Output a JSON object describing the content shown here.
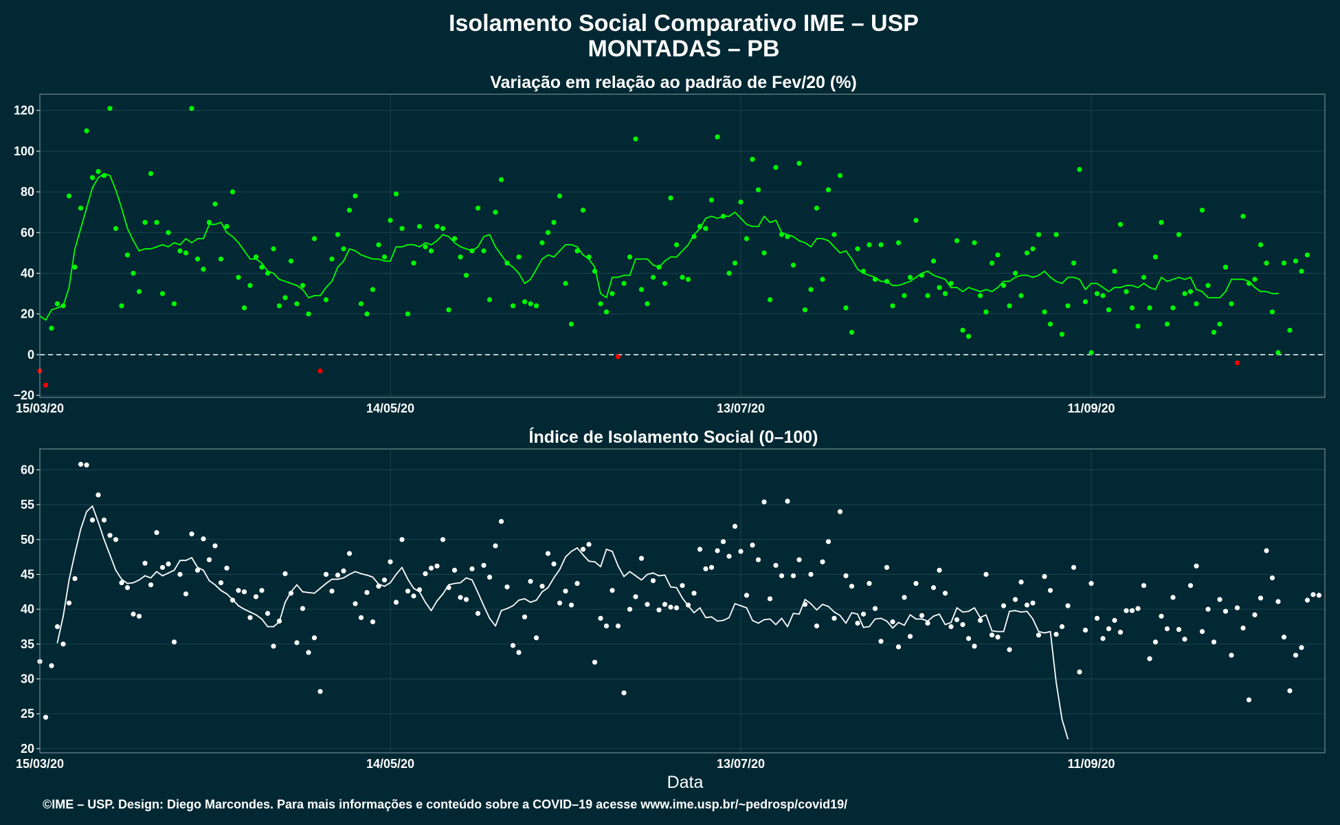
{
  "title": "Isolamento Social Comparativo IME – USP",
  "subtitle": "MONTADAS – PB",
  "xlabel": "Data",
  "caption": "©IME – USP. Design: Diego Marcondes. Para mais informações e conteúdo sobre a COVID–19 acesse www.ime.usp.br/~pedrosp/covid19/",
  "colors": {
    "background": "#022833",
    "positive": "#00ff00",
    "negative": "#ff0000",
    "index": "#ffffff"
  },
  "chart_data": [
    {
      "type": "scatter",
      "title": "Variação em relação ao padrão de Fev/20 (%)",
      "x_start": "2020-03-15",
      "x_end": "2020-10-21",
      "x_ticks": [
        "15/03/20",
        "14/05/20",
        "13/07/20",
        "11/09/20"
      ],
      "ylim": [
        -21,
        128
      ],
      "y_ticks": [
        -20,
        0,
        20,
        40,
        60,
        80,
        100,
        120
      ],
      "reference_line": 0,
      "series": [
        {
          "points": [
            -8,
            -15,
            13,
            25,
            24,
            78,
            43,
            72,
            110,
            87,
            90,
            88,
            121,
            62,
            24,
            49,
            40,
            31,
            65,
            89,
            65,
            30,
            60,
            25,
            51,
            50,
            121,
            47,
            42,
            65,
            74,
            47,
            63,
            80,
            38,
            23,
            34,
            48,
            43,
            40,
            52,
            24,
            28,
            46,
            25,
            34,
            20,
            57,
            -8,
            27,
            47,
            59,
            52,
            71,
            78,
            25,
            20,
            32,
            54,
            48,
            66,
            79,
            62,
            20,
            45,
            63,
            53,
            51,
            63,
            62,
            22,
            57,
            48,
            39,
            51,
            72,
            51,
            27,
            70,
            86,
            45,
            24,
            48,
            26,
            25,
            24,
            55,
            60,
            65,
            78,
            35,
            15,
            51,
            71,
            48,
            41,
            25,
            21,
            30,
            -1,
            35,
            48,
            106,
            32,
            25,
            38,
            43,
            35,
            77,
            54,
            38,
            37,
            58,
            63,
            62,
            76,
            107,
            68,
            40,
            45,
            75,
            57,
            96,
            81,
            50,
            27,
            92,
            59,
            58,
            44,
            94,
            22,
            32,
            72,
            37,
            81,
            59,
            88,
            23,
            11,
            52,
            41,
            54,
            37,
            54,
            36,
            24,
            55,
            29,
            38,
            66,
            39,
            29,
            46,
            33,
            30,
            35,
            56,
            12,
            9,
            55,
            29,
            21,
            45,
            49,
            34,
            24,
            40,
            29,
            50,
            52,
            59,
            21,
            15,
            59,
            10,
            24,
            45,
            91,
            26,
            1,
            30,
            29,
            22,
            41,
            64,
            31,
            23,
            14,
            38,
            23,
            48,
            65,
            15,
            23,
            59,
            30,
            31,
            25,
            71,
            34,
            11,
            15,
            43,
            25,
            -4,
            68,
            35,
            37,
            54,
            45,
            21,
            1,
            45,
            12,
            46,
            41,
            49
          ],
          "color_rule": "green if >= 0, red if < 0"
        },
        {
          "name": "",
          "kind": "moving-average",
          "points": [
            19,
            17,
            22,
            23,
            24,
            33,
            52,
            62,
            72,
            82,
            87,
            89,
            88,
            81,
            72,
            62,
            56,
            51,
            52,
            52,
            53,
            54,
            53,
            55,
            54,
            57,
            55,
            57,
            57,
            64,
            64,
            65,
            60,
            58,
            55,
            51,
            47,
            47,
            45,
            41,
            40,
            37,
            36,
            35,
            34,
            32,
            28,
            29,
            29,
            33,
            36,
            43,
            46,
            52,
            51,
            49,
            48,
            47,
            47,
            46,
            46,
            53,
            53,
            54,
            54,
            53,
            55,
            54,
            56,
            59,
            58,
            55,
            53,
            52,
            51,
            53,
            58,
            59,
            53,
            49,
            45,
            43,
            40,
            35,
            37,
            42,
            47,
            49,
            48,
            51,
            54,
            54,
            53,
            49,
            47,
            43,
            30,
            28,
            38,
            38,
            39,
            39,
            47,
            47,
            47,
            44,
            43,
            46,
            48,
            48,
            51,
            54,
            59,
            62,
            67,
            68,
            67,
            68,
            68,
            70,
            67,
            64,
            63,
            63,
            68,
            65,
            66,
            60,
            59,
            58,
            56,
            55,
            53,
            57,
            57,
            56,
            53,
            50,
            51,
            47,
            42,
            40,
            39,
            38,
            36,
            36,
            34,
            34,
            35,
            36,
            38,
            40,
            41,
            39,
            38,
            37,
            33,
            33,
            31,
            33,
            32,
            31,
            32,
            31,
            33,
            36,
            36,
            38,
            39,
            39,
            38,
            39,
            41,
            38,
            36,
            35,
            38,
            38,
            37,
            32,
            35,
            35,
            33,
            31,
            33,
            33,
            34,
            34,
            33,
            35,
            33,
            32,
            38,
            36,
            37,
            38,
            37,
            38,
            32,
            31,
            28,
            28,
            28,
            31,
            37,
            37,
            37,
            36,
            33,
            31,
            31,
            30,
            30
          ]
        }
      ]
    },
    {
      "type": "scatter",
      "title": "Índice de Isolamento Social (0–100)",
      "x_start": "2020-03-15",
      "x_end": "2020-10-21",
      "x_ticks": [
        "15/03/20",
        "14/05/20",
        "13/07/20",
        "11/09/20"
      ],
      "ylim": [
        19.4,
        63
      ],
      "y_ticks": [
        20,
        25,
        30,
        35,
        40,
        45,
        50,
        55,
        60
      ],
      "series": [
        {
          "points": [
            32.5,
            24.5,
            31.9,
            37.5,
            35,
            40.9,
            44.4,
            60.8,
            60.7,
            52.8,
            56.4,
            52.8,
            50.6,
            50,
            43.8,
            43.1,
            39.3,
            39,
            46.6,
            43.5,
            51,
            46,
            46.5,
            35.3,
            45,
            42.2,
            50.8,
            45.6,
            50.1,
            47.1,
            49.1,
            43.8,
            45.9,
            41.3,
            42.7,
            42.5,
            38.8,
            41.8,
            42.7,
            39.4,
            34.7,
            38.3,
            45.1,
            42.3,
            35.2,
            40.1,
            33.8,
            35.9,
            28.2,
            45,
            42.6,
            44.9,
            45.5,
            48,
            40.8,
            38.8,
            42.4,
            38.2,
            43.3,
            44.2,
            46.8,
            41,
            50,
            42.6,
            41.9,
            42.8,
            45.1,
            45.9,
            46.2,
            50,
            43.1,
            45.6,
            41.7,
            41.4,
            45.8,
            39.4,
            46.3,
            44.6,
            49.1,
            52.6,
            43.2,
            34.8,
            33.8,
            38.9,
            44,
            35.9,
            43.3,
            48,
            46.5,
            40.9,
            42.6,
            40.6,
            43.7,
            48.6,
            49.3,
            32.4,
            38.7,
            37.6,
            42.7,
            37.6,
            28,
            40,
            41.8,
            47.3,
            40.7,
            44.1,
            39.9,
            40.7,
            40.3,
            40.2,
            43.4,
            40.6,
            42.3,
            48.6,
            45.8,
            46,
            48.4,
            49.7,
            47.6,
            51.9,
            48.3,
            42,
            49.2,
            47.1,
            55.4,
            41.5,
            46.3,
            44.8,
            55.5,
            44.8,
            47.1,
            40.7,
            45,
            37.6,
            46.8,
            49.7,
            38.7,
            54,
            44.8,
            43.3,
            38,
            39.3,
            43.7,
            40.1,
            35.4,
            46,
            38.2,
            34.6,
            41.7,
            36.1,
            43.7,
            39.1,
            38,
            43.1,
            45.6,
            42.3,
            37.5,
            38.5,
            37.8,
            35.8,
            34.7,
            38.4,
            45,
            36.3,
            36,
            40.5,
            34.2,
            41.4,
            43.9,
            40.6,
            40.9,
            36.3,
            44.7,
            42.7,
            36.4,
            37.5,
            40.5,
            46,
            31,
            37,
            43.7,
            38.7,
            35.8,
            37.2,
            38.4,
            36.7,
            39.8,
            39.8,
            40.1,
            43.4,
            32.9,
            35.3,
            39,
            37.2,
            41.7,
            37.1,
            35.7,
            43.4,
            46.2,
            36.8,
            40,
            35.3,
            41.4,
            39.7,
            33.4,
            40.2,
            37.3,
            27,
            39.2,
            41.6,
            48.4,
            44.5,
            41.1,
            36,
            28.3,
            33.4,
            34.5,
            41.3,
            42.1,
            42
          ]
        },
        {
          "name": "",
          "kind": "moving-average",
          "points": [
            35.2,
            39,
            44.2,
            48,
            51.5,
            54,
            54.8,
            52.5,
            50,
            47.8,
            45.6,
            44.3,
            43.7,
            43.8,
            44.2,
            44.8,
            44.5,
            45.4,
            44.8,
            45.2,
            45.6,
            47,
            47,
            47.4,
            46,
            45.6,
            44.1,
            43.5,
            42.7,
            42.2,
            41.4,
            40.5,
            40,
            39.6,
            39.2,
            38.6,
            37.5,
            37.5,
            38.2,
            41,
            42.5,
            43.5,
            42.5,
            42.4,
            42.3,
            43,
            43.7,
            44.3,
            44.3,
            44.5,
            45,
            45.4,
            45.1,
            44.9,
            44.6,
            43.6,
            43.3,
            43.8,
            45,
            46,
            44.3,
            43,
            42.5,
            41,
            39.8,
            41.2,
            42.2,
            43.5,
            43.7,
            43.8,
            44.5,
            44.2,
            42.4,
            40.5,
            38.7,
            37.6,
            39.8,
            40.1,
            40.5,
            41.3,
            41.5,
            41,
            41.3,
            42.5,
            43.1,
            44.5,
            45.7,
            47.5,
            48.3,
            48.8,
            47.8,
            46.9,
            46.8,
            46.1,
            48.6,
            48.3,
            46.2,
            44.7,
            45.4,
            44.8,
            44.2,
            45,
            45.2,
            44.8,
            44.9,
            43.2,
            43.1,
            41.6,
            40.5,
            39.5,
            40.2,
            38.8,
            38.9,
            38.3,
            38.4,
            38.8,
            40.8,
            40.5,
            40.2,
            38.4,
            38,
            38.5,
            38.6,
            37.8,
            38.7,
            37.5,
            39.4,
            39.3,
            41.4,
            40.8,
            39.9,
            40.7,
            40.4,
            39.6,
            39.1,
            38,
            39.5,
            39.3,
            37.4,
            37.5,
            38.6,
            38.7,
            38.3,
            37.3,
            38.1,
            37.7,
            39.2,
            38.6,
            38.6,
            38.3,
            39,
            39.3,
            37.8,
            38.1,
            40.2,
            39.6,
            39.7,
            40.2,
            38.8,
            39.2,
            36.9,
            36.8,
            36.8,
            39.7,
            39.8,
            39.6,
            39.7,
            38.6,
            36.8,
            36.6,
            36.8,
            29.5,
            24.2,
            21.4
          ]
        }
      ]
    }
  ]
}
